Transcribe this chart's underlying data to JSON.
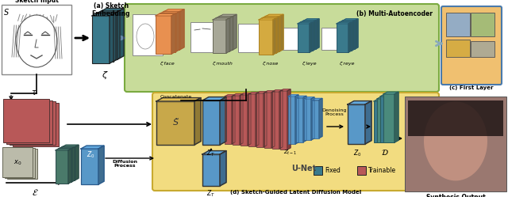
{
  "subtitle_d": "(d) Sketch-Guided Latent Diffusion Model",
  "subtitle_a": "(a) Sketch\nEmbedding",
  "subtitle_b": "(b) Multi-Autoencoder",
  "subtitle_c": "(c) First Layer",
  "sketch_input_label": "Sketch Input",
  "synthesis_output_label": "Synthesis Output",
  "zeta_label": "ζ",
  "zeta_face": "ζ face",
  "zeta_mouth": "ζ mouth",
  "zeta_nose": "ζ nose",
  "zeta_leye": "ζ leye",
  "zeta_reye": "ζ reye",
  "tau_label": "τ",
  "s_tilde_label": "S̃",
  "unet_label": "U-Net",
  "concatenate_label": "Concatenate",
  "denoising_label": "Denoising\nProcess",
  "diffusion_label": "Diffusion\nProcess",
  "fixed_label": "Fixed",
  "trainable_label": "Trainable",
  "bg_color": "#FFFFFF",
  "green_fill": "#C8DC9A",
  "green_edge": "#7AAA40",
  "yellow_fill": "#F2DC80",
  "yellow_edge": "#C8AA30",
  "orange_block": "#E89050",
  "teal_dark": "#3A7A8C",
  "teal_med": "#4A9AAC",
  "teal_light": "#8ABCCC",
  "yellow_block": "#D4AA40",
  "gray_block": "#A8A898",
  "gray_light": "#C8C8B8",
  "red_block": "#B85858",
  "red_dark": "#984040",
  "blue_block": "#5880A8",
  "green_block": "#7AAA78",
  "sketch_face_color": "#F8F8F8"
}
